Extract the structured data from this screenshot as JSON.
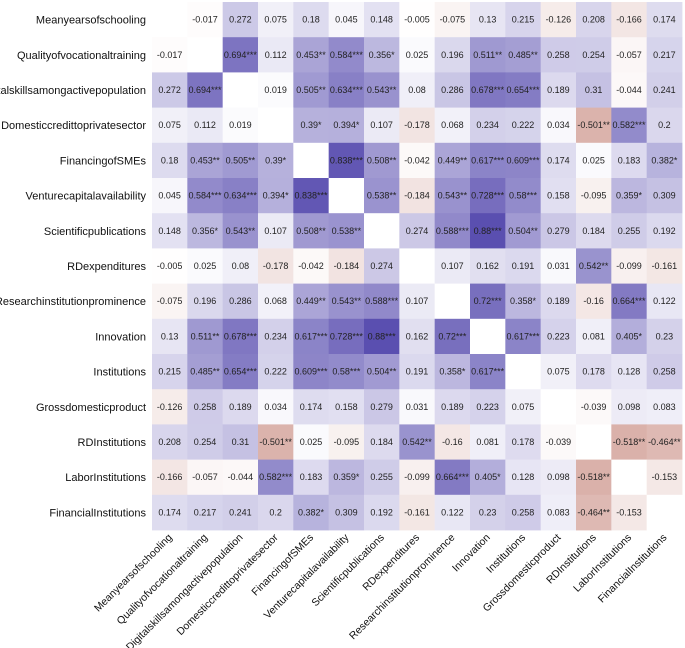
{
  "chart_data": {
    "type": "heatmap",
    "title": "",
    "xlabel": "",
    "ylabel": "",
    "labels": [
      "Meanyearsofschooling",
      "Qualityofvocationaltraining",
      "Digitalskillsamongactivepopulation",
      "Domesticcredittoprivatesector",
      "FinancingofSMEs",
      "Venturecapitalavailability",
      "Scientificpublications",
      "RDexpenditures",
      "Researchinstitutionprominence",
      "Innovation",
      "Institutions",
      "Grossdomesticproduct",
      "RDInstitutions",
      "LaborInstitutions",
      "FinancialInstitutions"
    ],
    "value_range": [
      -1,
      1
    ],
    "colors": {
      "positive": "#5a4fb0",
      "negative": "#c07a6e",
      "neutral": "#ffffff"
    },
    "matrix": [
      [
        null,
        "-0.017",
        "0.272",
        "0.075",
        "0.18",
        "0.045",
        "0.148",
        "-0.005",
        "-0.075",
        "0.13",
        "0.215",
        "-0.126",
        "0.208",
        "-0.166",
        "0.174"
      ],
      [
        "-0.017",
        null,
        "0.694***",
        "0.112",
        "0.453**",
        "0.584***",
        "0.356*",
        "0.025",
        "0.196",
        "0.511**",
        "0.485**",
        "0.258",
        "0.254",
        "-0.057",
        "0.217"
      ],
      [
        "0.272",
        "0.694***",
        null,
        "0.019",
        "0.505**",
        "0.634***",
        "0.543**",
        "0.08",
        "0.286",
        "0.678***",
        "0.654***",
        "0.189",
        "0.31",
        "-0.044",
        "0.241"
      ],
      [
        "0.075",
        "0.112",
        "0.019",
        null,
        "0.39*",
        "0.394*",
        "0.107",
        "-0.178",
        "0.068",
        "0.234",
        "0.222",
        "0.034",
        "-0.501**",
        "0.582***",
        "0.2"
      ],
      [
        "0.18",
        "0.453**",
        "0.505**",
        "0.39*",
        null,
        "0.838***",
        "0.508**",
        "-0.042",
        "0.449**",
        "0.617***",
        "0.609***",
        "0.174",
        "0.025",
        "0.183",
        "0.382*"
      ],
      [
        "0.045",
        "0.584***",
        "0.634***",
        "0.394*",
        "0.838***",
        null,
        "0.538**",
        "-0.184",
        "0.543**",
        "0.728***",
        "0.58***",
        "0.158",
        "-0.095",
        "0.359*",
        "0.309"
      ],
      [
        "0.148",
        "0.356*",
        "0.543**",
        "0.107",
        "0.508**",
        "0.538**",
        null,
        "0.274",
        "0.588***",
        "0.88***",
        "0.504**",
        "0.279",
        "0.184",
        "0.255",
        "0.192"
      ],
      [
        "-0.005",
        "0.025",
        "0.08",
        "-0.178",
        "-0.042",
        "-0.184",
        "0.274",
        null,
        "0.107",
        "0.162",
        "0.191",
        "0.031",
        "0.542**",
        "-0.099",
        "-0.161"
      ],
      [
        "-0.075",
        "0.196",
        "0.286",
        "0.068",
        "0.449**",
        "0.543**",
        "0.588***",
        "0.107",
        null,
        "0.72***",
        "0.358*",
        "0.189",
        "-0.16",
        "0.664***",
        "0.122"
      ],
      [
        "0.13",
        "0.511**",
        "0.678***",
        "0.234",
        "0.617***",
        "0.728***",
        "0.88***",
        "0.162",
        "0.72***",
        null,
        "0.617***",
        "0.223",
        "0.081",
        "0.405*",
        "0.23"
      ],
      [
        "0.215",
        "0.485**",
        "0.654***",
        "0.222",
        "0.609***",
        "0.58***",
        "0.504**",
        "0.191",
        "0.358*",
        "0.617***",
        null,
        "0.075",
        "0.178",
        "0.128",
        "0.258"
      ],
      [
        "-0.126",
        "0.258",
        "0.189",
        "0.034",
        "0.174",
        "0.158",
        "0.279",
        "0.031",
        "0.189",
        "0.223",
        "0.075",
        null,
        "-0.039",
        "0.098",
        "0.083"
      ],
      [
        "0.208",
        "0.254",
        "0.31",
        "-0.501**",
        "0.025",
        "-0.095",
        "0.184",
        "0.542**",
        "-0.16",
        "0.081",
        "0.178",
        "-0.039",
        null,
        "-0.518**",
        "-0.464**"
      ],
      [
        "-0.166",
        "-0.057",
        "-0.044",
        "0.582***",
        "0.183",
        "0.359*",
        "0.255",
        "-0.099",
        "0.664***",
        "0.405*",
        "0.128",
        "0.098",
        "-0.518**",
        null,
        "-0.153"
      ],
      [
        "0.174",
        "0.217",
        "0.241",
        "0.2",
        "0.382*",
        "0.309",
        "0.192",
        "-0.161",
        "0.122",
        "0.23",
        "0.258",
        "0.083",
        "-0.464**",
        "-0.153",
        null
      ]
    ]
  }
}
